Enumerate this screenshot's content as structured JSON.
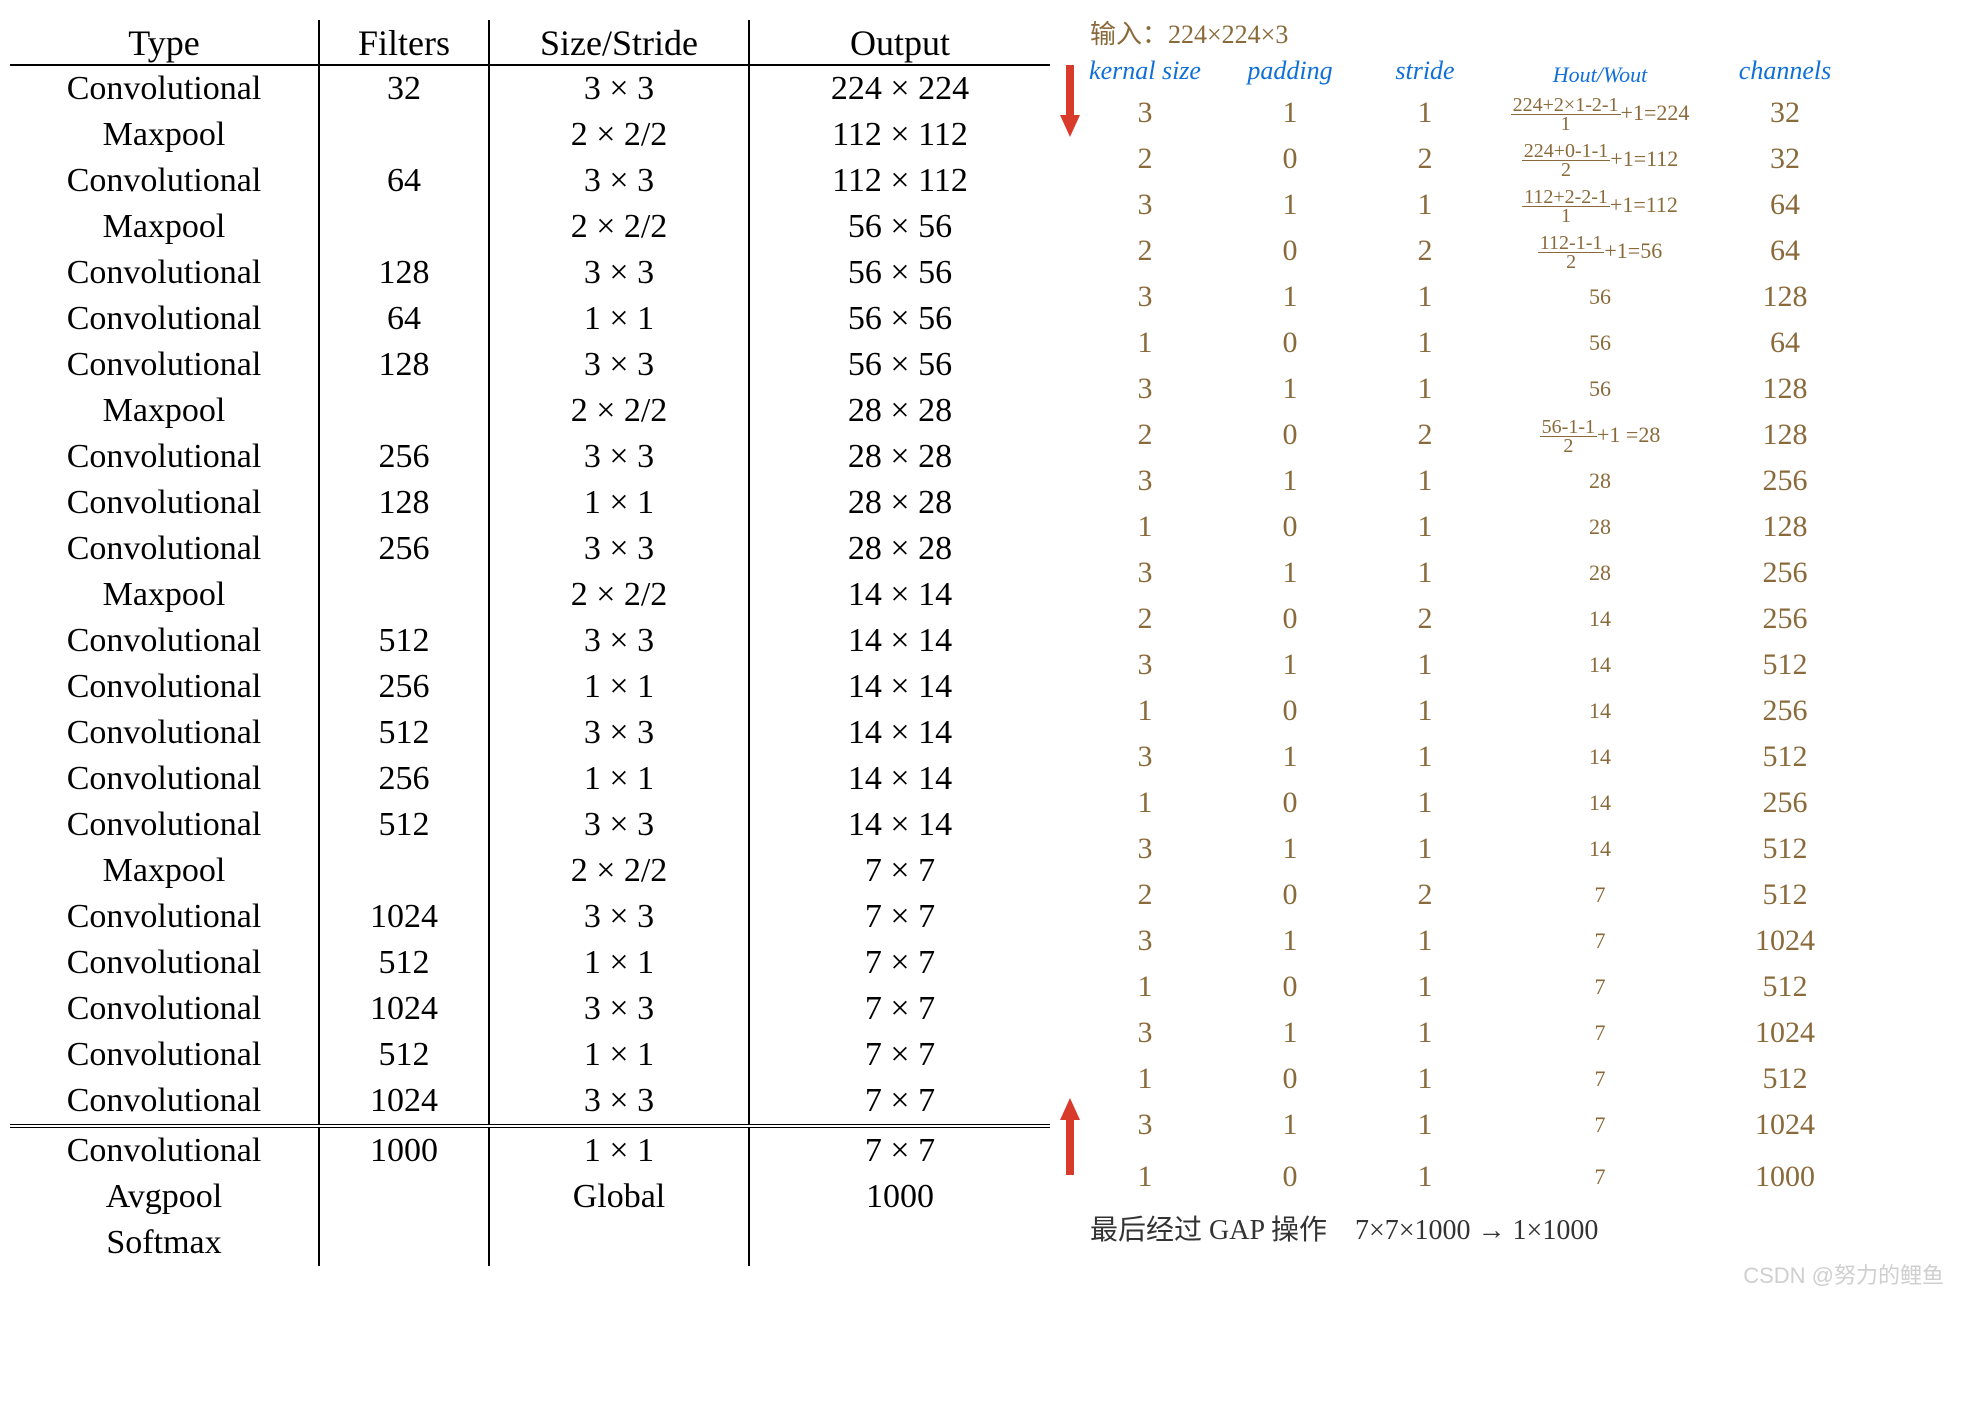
{
  "printed": {
    "headers": [
      "Type",
      "Filters",
      "Size/Stride",
      "Output"
    ],
    "rows": [
      [
        "Convolutional",
        "32",
        "3 × 3",
        "224 × 224"
      ],
      [
        "Maxpool",
        "",
        "2 × 2/2",
        "112 × 112"
      ],
      [
        "Convolutional",
        "64",
        "3 × 3",
        "112 × 112"
      ],
      [
        "Maxpool",
        "",
        "2 × 2/2",
        "56 × 56"
      ],
      [
        "Convolutional",
        "128",
        "3 × 3",
        "56 × 56"
      ],
      [
        "Convolutional",
        "64",
        "1 × 1",
        "56 × 56"
      ],
      [
        "Convolutional",
        "128",
        "3 × 3",
        "56 × 56"
      ],
      [
        "Maxpool",
        "",
        "2 × 2/2",
        "28 × 28"
      ],
      [
        "Convolutional",
        "256",
        "3 × 3",
        "28 × 28"
      ],
      [
        "Convolutional",
        "128",
        "1 × 1",
        "28 × 28"
      ],
      [
        "Convolutional",
        "256",
        "3 × 3",
        "28 × 28"
      ],
      [
        "Maxpool",
        "",
        "2 × 2/2",
        "14 × 14"
      ],
      [
        "Convolutional",
        "512",
        "3 × 3",
        "14 × 14"
      ],
      [
        "Convolutional",
        "256",
        "1 × 1",
        "14 × 14"
      ],
      [
        "Convolutional",
        "512",
        "3 × 3",
        "14 × 14"
      ],
      [
        "Convolutional",
        "256",
        "1 × 1",
        "14 × 14"
      ],
      [
        "Convolutional",
        "512",
        "3 × 3",
        "14 × 14"
      ],
      [
        "Maxpool",
        "",
        "2 × 2/2",
        "7 × 7"
      ],
      [
        "Convolutional",
        "1024",
        "3 × 3",
        "7 × 7"
      ],
      [
        "Convolutional",
        "512",
        "1 × 1",
        "7 × 7"
      ],
      [
        "Convolutional",
        "1024",
        "3 × 3",
        "7 × 7"
      ],
      [
        "Convolutional",
        "512",
        "1 × 1",
        "7 × 7"
      ],
      [
        "Convolutional",
        "1024",
        "3 × 3",
        "7 × 7"
      ]
    ],
    "rows2": [
      [
        "Convolutional",
        "1000",
        "1 × 1",
        "7 × 7"
      ],
      [
        "Avgpool",
        "",
        "Global",
        "1000"
      ],
      [
        "Softmax",
        "",
        "",
        ""
      ]
    ]
  },
  "hand": {
    "top_note": "输入：224×224×3",
    "headers": [
      "kernal size",
      "padding",
      "stride",
      "Hout/Wout",
      "channels"
    ],
    "rows": [
      {
        "k": "3",
        "p": "1",
        "s": "1",
        "hw_num": "224+2×1-2-1",
        "hw_den": "1",
        "hw_suf": "+1=224",
        "c": "32"
      },
      {
        "k": "2",
        "p": "0",
        "s": "2",
        "hw_num": "224+0-1-1",
        "hw_den": "2",
        "hw_suf": "+1=112",
        "c": "32"
      },
      {
        "k": "3",
        "p": "1",
        "s": "1",
        "hw_num": "112+2-2-1",
        "hw_den": "1",
        "hw_suf": "+1=112",
        "c": "64"
      },
      {
        "k": "2",
        "p": "0",
        "s": "2",
        "hw_num": "112-1-1",
        "hw_den": "2",
        "hw_suf": "+1=56",
        "c": "64"
      },
      {
        "k": "3",
        "p": "1",
        "s": "1",
        "hw_plain": "56",
        "c": "128"
      },
      {
        "k": "1",
        "p": "0",
        "s": "1",
        "hw_plain": "56",
        "c": "64"
      },
      {
        "k": "3",
        "p": "1",
        "s": "1",
        "hw_plain": "56",
        "c": "128"
      },
      {
        "k": "2",
        "p": "0",
        "s": "2",
        "hw_num": "56-1-1",
        "hw_den": "2",
        "hw_suf": "+1 =28",
        "c": "128"
      },
      {
        "k": "3",
        "p": "1",
        "s": "1",
        "hw_plain": "28",
        "c": "256"
      },
      {
        "k": "1",
        "p": "0",
        "s": "1",
        "hw_plain": "28",
        "c": "128"
      },
      {
        "k": "3",
        "p": "1",
        "s": "1",
        "hw_plain": "28",
        "c": "256"
      },
      {
        "k": "2",
        "p": "0",
        "s": "2",
        "hw_plain": "14",
        "c": "256"
      },
      {
        "k": "3",
        "p": "1",
        "s": "1",
        "hw_plain": "14",
        "c": "512"
      },
      {
        "k": "1",
        "p": "0",
        "s": "1",
        "hw_plain": "14",
        "c": "256"
      },
      {
        "k": "3",
        "p": "1",
        "s": "1",
        "hw_plain": "14",
        "c": "512"
      },
      {
        "k": "1",
        "p": "0",
        "s": "1",
        "hw_plain": "14",
        "c": "256"
      },
      {
        "k": "3",
        "p": "1",
        "s": "1",
        "hw_plain": "14",
        "c": "512"
      },
      {
        "k": "2",
        "p": "0",
        "s": "2",
        "hw_plain": "7",
        "c": "512"
      },
      {
        "k": "3",
        "p": "1",
        "s": "1",
        "hw_plain": "7",
        "c": "1024"
      },
      {
        "k": "1",
        "p": "0",
        "s": "1",
        "hw_plain": "7",
        "c": "512"
      },
      {
        "k": "3",
        "p": "1",
        "s": "1",
        "hw_plain": "7",
        "c": "1024"
      },
      {
        "k": "1",
        "p": "0",
        "s": "1",
        "hw_plain": "7",
        "c": "512"
      },
      {
        "k": "3",
        "p": "1",
        "s": "1",
        "hw_plain": "7",
        "c": "1024"
      }
    ],
    "rows2": [
      {
        "k": "1",
        "p": "0",
        "s": "1",
        "hw_plain": "7",
        "c": "1000"
      }
    ],
    "bottom_note": "最后经过 GAP 操作　7×7×1000 → 1×1000"
  },
  "colors": {
    "ink_brown": "#8a6a3a",
    "ink_blue": "#1070d8",
    "arrow_red": "#d83a2b",
    "watermark": "#cfcfcf"
  },
  "watermark": "CSDN @努力的鲤鱼"
}
